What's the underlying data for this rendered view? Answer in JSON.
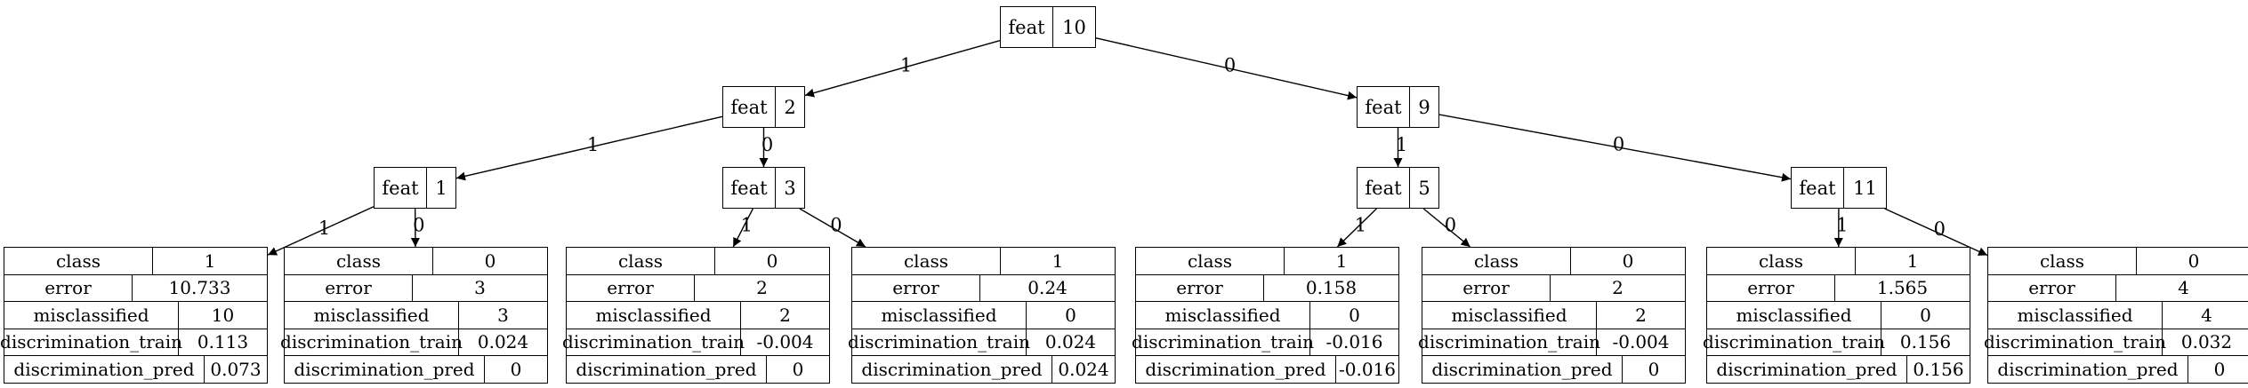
{
  "tree": {
    "internal": [
      {
        "id": "n0",
        "key": "feat",
        "value": "10"
      },
      {
        "id": "n1",
        "key": "feat",
        "value": "2"
      },
      {
        "id": "n2",
        "key": "feat",
        "value": "9"
      },
      {
        "id": "n3",
        "key": "feat",
        "value": "1"
      },
      {
        "id": "n4",
        "key": "feat",
        "value": "3"
      },
      {
        "id": "n5",
        "key": "feat",
        "value": "5"
      },
      {
        "id": "n6",
        "key": "feat",
        "value": "11"
      }
    ],
    "leaves": [
      {
        "id": "l0",
        "rows": [
          [
            "class",
            "1"
          ],
          [
            "error",
            "10.733"
          ],
          [
            "misclassified",
            "10"
          ],
          [
            "discrimination_train",
            "0.113"
          ],
          [
            "discrimination_pred",
            "0.073"
          ]
        ]
      },
      {
        "id": "l1",
        "rows": [
          [
            "class",
            "0"
          ],
          [
            "error",
            "3"
          ],
          [
            "misclassified",
            "3"
          ],
          [
            "discrimination_train",
            "0.024"
          ],
          [
            "discrimination_pred",
            "0"
          ]
        ]
      },
      {
        "id": "l2",
        "rows": [
          [
            "class",
            "0"
          ],
          [
            "error",
            "2"
          ],
          [
            "misclassified",
            "2"
          ],
          [
            "discrimination_train",
            "-0.004"
          ],
          [
            "discrimination_pred",
            "0"
          ]
        ]
      },
      {
        "id": "l3",
        "rows": [
          [
            "class",
            "1"
          ],
          [
            "error",
            "0.24"
          ],
          [
            "misclassified",
            "0"
          ],
          [
            "discrimination_train",
            "0.024"
          ],
          [
            "discrimination_pred",
            "0.024"
          ]
        ]
      },
      {
        "id": "l4",
        "rows": [
          [
            "class",
            "1"
          ],
          [
            "error",
            "0.158"
          ],
          [
            "misclassified",
            "0"
          ],
          [
            "discrimination_train",
            "-0.016"
          ],
          [
            "discrimination_pred",
            "-0.016"
          ]
        ]
      },
      {
        "id": "l5",
        "rows": [
          [
            "class",
            "0"
          ],
          [
            "error",
            "2"
          ],
          [
            "misclassified",
            "2"
          ],
          [
            "discrimination_train",
            "-0.004"
          ],
          [
            "discrimination_pred",
            "0"
          ]
        ]
      },
      {
        "id": "l6",
        "rows": [
          [
            "class",
            "1"
          ],
          [
            "error",
            "1.565"
          ],
          [
            "misclassified",
            "0"
          ],
          [
            "discrimination_train",
            "0.156"
          ],
          [
            "discrimination_pred",
            "0.156"
          ]
        ]
      },
      {
        "id": "l7",
        "rows": [
          [
            "class",
            "0"
          ],
          [
            "error",
            "4"
          ],
          [
            "misclassified",
            "4"
          ],
          [
            "discrimination_train",
            "0.032"
          ],
          [
            "discrimination_pred",
            "0"
          ]
        ]
      }
    ],
    "edges": [
      {
        "from": "n0",
        "to": "n1",
        "label": "1"
      },
      {
        "from": "n0",
        "to": "n2",
        "label": "0"
      },
      {
        "from": "n1",
        "to": "n3",
        "label": "1"
      },
      {
        "from": "n1",
        "to": "n4",
        "label": "0"
      },
      {
        "from": "n2",
        "to": "n5",
        "label": "1"
      },
      {
        "from": "n2",
        "to": "n6",
        "label": "0"
      },
      {
        "from": "n3",
        "to": "l0",
        "label": "1"
      },
      {
        "from": "n3",
        "to": "l1",
        "label": "0"
      },
      {
        "from": "n4",
        "to": "l2",
        "label": "1"
      },
      {
        "from": "n4",
        "to": "l3",
        "label": "0"
      },
      {
        "from": "n5",
        "to": "l4",
        "label": "1"
      },
      {
        "from": "n5",
        "to": "l5",
        "label": "0"
      },
      {
        "from": "n6",
        "to": "l6",
        "label": "1"
      },
      {
        "from": "n6",
        "to": "l7",
        "label": "0"
      }
    ]
  }
}
